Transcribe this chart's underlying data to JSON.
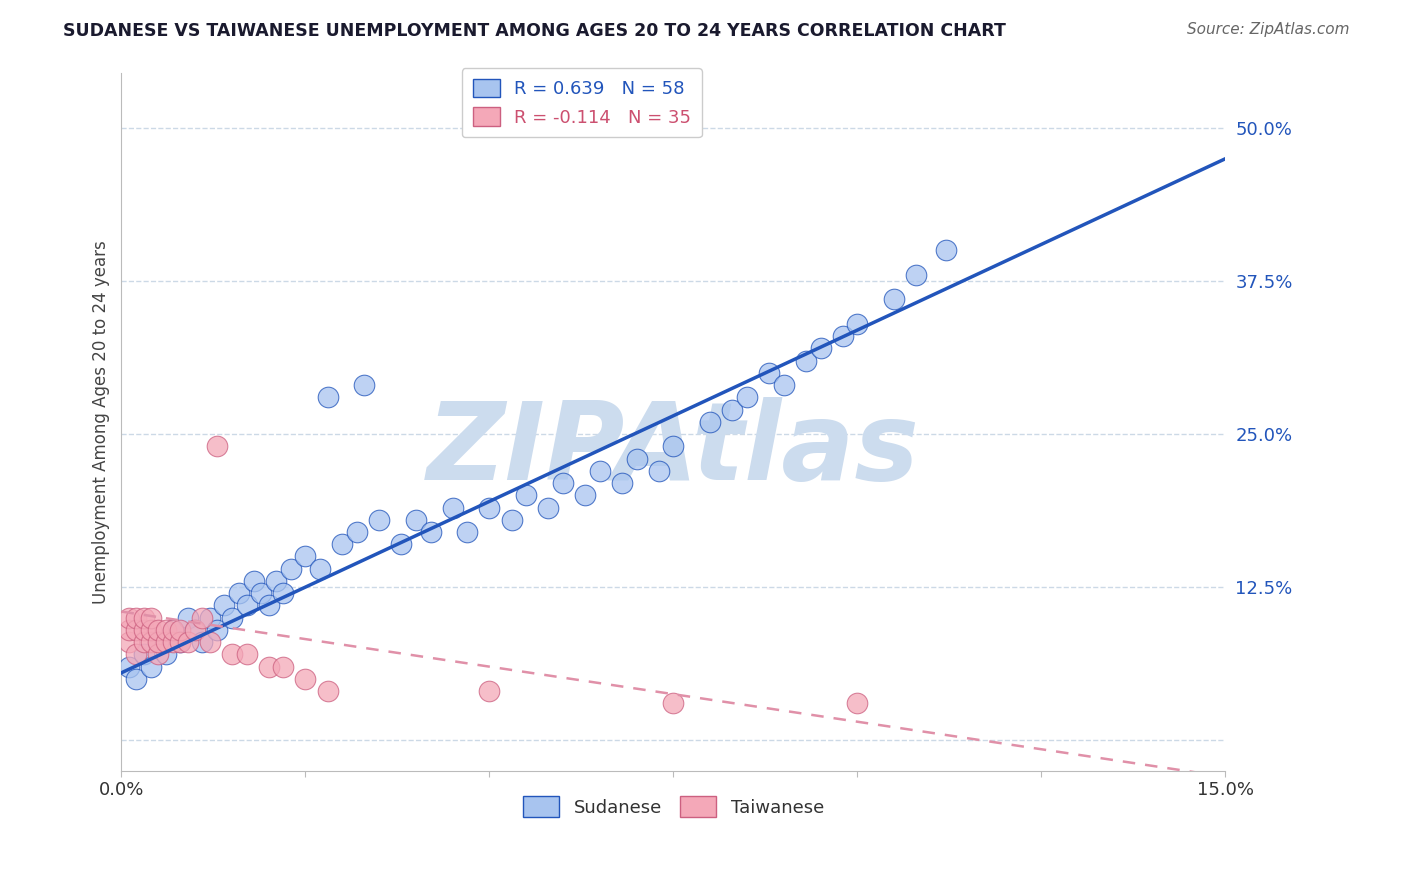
{
  "title": "SUDANESE VS TAIWANESE UNEMPLOYMENT AMONG AGES 20 TO 24 YEARS CORRELATION CHART",
  "source": "Source: ZipAtlas.com",
  "ylabel": "Unemployment Among Ages 20 to 24 years",
  "xlim": [
    0.0,
    0.15
  ],
  "ylim": [
    -0.025,
    0.545
  ],
  "yticks": [
    0.0,
    0.125,
    0.25,
    0.375,
    0.5
  ],
  "ytick_labels": [
    "",
    "12.5%",
    "25.0%",
    "37.5%",
    "50.0%"
  ],
  "xticks": [
    0.0,
    0.025,
    0.05,
    0.075,
    0.1,
    0.125,
    0.15
  ],
  "xtick_labels": [
    "0.0%",
    "",
    "",
    "",
    "",
    "",
    "15.0%"
  ],
  "r_sudanese": 0.639,
  "n_sudanese": 58,
  "r_taiwanese": -0.114,
  "n_taiwanese": 35,
  "sudanese_color": "#a8c4ef",
  "taiwanese_color": "#f4a8b8",
  "sudanese_line_color": "#2255bb",
  "taiwanese_line_color": "#e090a8",
  "watermark": "ZIPAtlas",
  "watermark_color": "#ccdcee",
  "background_color": "#ffffff",
  "grid_color": "#c0d0e0",
  "sudanese_line_slope": 2.8,
  "sudanese_line_intercept": 0.055,
  "taiwanese_line_slope": -0.9,
  "taiwanese_line_intercept": 0.105,
  "sudanese_x": [
    0.001,
    0.002,
    0.003,
    0.004,
    0.005,
    0.006,
    0.007,
    0.008,
    0.009,
    0.01,
    0.011,
    0.012,
    0.013,
    0.014,
    0.015,
    0.016,
    0.017,
    0.018,
    0.019,
    0.02,
    0.021,
    0.022,
    0.023,
    0.025,
    0.027,
    0.028,
    0.03,
    0.032,
    0.033,
    0.035,
    0.038,
    0.04,
    0.042,
    0.045,
    0.047,
    0.05,
    0.053,
    0.055,
    0.058,
    0.06,
    0.063,
    0.065,
    0.068,
    0.07,
    0.073,
    0.075,
    0.08,
    0.083,
    0.085,
    0.088,
    0.09,
    0.093,
    0.095,
    0.098,
    0.1,
    0.105,
    0.108,
    0.112
  ],
  "sudanese_y": [
    0.06,
    0.05,
    0.07,
    0.06,
    0.08,
    0.07,
    0.09,
    0.08,
    0.1,
    0.09,
    0.08,
    0.1,
    0.09,
    0.11,
    0.1,
    0.12,
    0.11,
    0.13,
    0.12,
    0.11,
    0.13,
    0.12,
    0.14,
    0.15,
    0.14,
    0.28,
    0.16,
    0.17,
    0.29,
    0.18,
    0.16,
    0.18,
    0.17,
    0.19,
    0.17,
    0.19,
    0.18,
    0.2,
    0.19,
    0.21,
    0.2,
    0.22,
    0.21,
    0.23,
    0.22,
    0.24,
    0.26,
    0.27,
    0.28,
    0.3,
    0.29,
    0.31,
    0.32,
    0.33,
    0.34,
    0.36,
    0.38,
    0.4
  ],
  "taiwanese_x": [
    0.001,
    0.001,
    0.001,
    0.002,
    0.002,
    0.002,
    0.003,
    0.003,
    0.003,
    0.004,
    0.004,
    0.004,
    0.005,
    0.005,
    0.005,
    0.006,
    0.006,
    0.007,
    0.007,
    0.008,
    0.008,
    0.009,
    0.01,
    0.011,
    0.012,
    0.013,
    0.015,
    0.017,
    0.02,
    0.022,
    0.025,
    0.028,
    0.05,
    0.075,
    0.1
  ],
  "taiwanese_y": [
    0.08,
    0.09,
    0.1,
    0.07,
    0.09,
    0.1,
    0.08,
    0.09,
    0.1,
    0.08,
    0.09,
    0.1,
    0.07,
    0.08,
    0.09,
    0.08,
    0.09,
    0.08,
    0.09,
    0.08,
    0.09,
    0.08,
    0.09,
    0.1,
    0.08,
    0.24,
    0.07,
    0.07,
    0.06,
    0.06,
    0.05,
    0.04,
    0.04,
    0.03,
    0.03
  ]
}
